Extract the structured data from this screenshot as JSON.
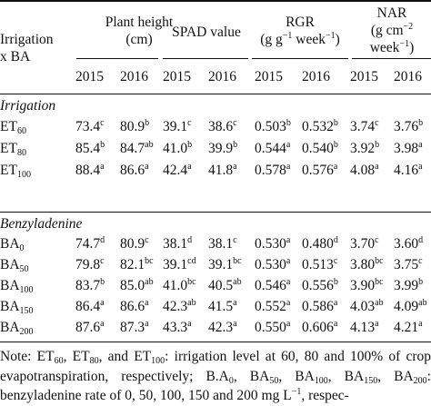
{
  "header": {
    "row_label_line1": "Irrigation",
    "row_label_line2": "x BA",
    "col_plant_height_l1": "Plant height",
    "col_plant_height_l2": "(cm)",
    "col_spad": "SPAD value",
    "col_rgr_l1": "RGR",
    "col_rgr_l2": "(g g",
    "col_rgr_l2_sup": "−1",
    "col_rgr_l2_tail": " week",
    "col_rgr_l2_sup2": "−1",
    "col_rgr_l2_end": ")",
    "col_nar_l1": "NAR",
    "col_nar_l2": "(g cm",
    "col_nar_l2_sup": "−2",
    "col_nar_l3": "week",
    "col_nar_l3_sup": "−1",
    "col_nar_l3_end": ")",
    "years": [
      "2015",
      "2016",
      "2015",
      "2016",
      "2015",
      "2016",
      "2015",
      "2016"
    ]
  },
  "sections": {
    "irrigation": "Irrigation",
    "benzyladenine": "Benzyladenine"
  },
  "rows": [
    {
      "base": "ET",
      "sub": "60",
      "cells": [
        [
          "73.4",
          "c"
        ],
        [
          "80.9",
          "b"
        ],
        [
          "39.1",
          "c"
        ],
        [
          "38.6",
          "c"
        ],
        [
          "0.503",
          "b"
        ],
        [
          "0.532",
          "b"
        ],
        [
          "3.74",
          "c"
        ],
        [
          "3.76",
          "b"
        ]
      ]
    },
    {
      "base": "ET",
      "sub": "80",
      "cells": [
        [
          "85.4",
          "b"
        ],
        [
          "84.7",
          "ab"
        ],
        [
          "41.0",
          "b"
        ],
        [
          "39.9",
          "b"
        ],
        [
          "0.544",
          "a"
        ],
        [
          "0.540",
          "b"
        ],
        [
          "3.92",
          "b"
        ],
        [
          "3.98",
          "a"
        ]
      ]
    },
    {
      "base": "ET",
      "sub": "100",
      "cells": [
        [
          "88.4",
          "a"
        ],
        [
          "86.6",
          "a"
        ],
        [
          "42.4",
          "a"
        ],
        [
          "41.8",
          "a"
        ],
        [
          "0.578",
          "a"
        ],
        [
          "0.576",
          "a"
        ],
        [
          "4.08",
          "a"
        ],
        [
          "4.16",
          "a"
        ]
      ]
    },
    {
      "base": "BA",
      "sub": "0",
      "cells": [
        [
          "74.7",
          "d"
        ],
        [
          "80.9",
          "c"
        ],
        [
          "38.1",
          "d"
        ],
        [
          "38.1",
          "c"
        ],
        [
          "0.530",
          "a"
        ],
        [
          "0.480",
          "d"
        ],
        [
          "3.70",
          "c"
        ],
        [
          "3.60",
          "d"
        ]
      ]
    },
    {
      "base": "BA",
      "sub": "50",
      "cells": [
        [
          "79.8",
          "c"
        ],
        [
          "82.1",
          "bc"
        ],
        [
          "39.1",
          "cd"
        ],
        [
          "39.1",
          "bc"
        ],
        [
          "0.530",
          "a"
        ],
        [
          "0.513",
          "c"
        ],
        [
          "3.80",
          "bc"
        ],
        [
          "3.75",
          "c"
        ]
      ]
    },
    {
      "base": "BA",
      "sub": "100",
      "cells": [
        [
          "83.7",
          "b"
        ],
        [
          "85.0",
          "ab"
        ],
        [
          "41.0",
          "bc"
        ],
        [
          "40.5",
          "ab"
        ],
        [
          "0.546",
          "a"
        ],
        [
          "0.556",
          "b"
        ],
        [
          "3.90",
          "bc"
        ],
        [
          "3.99",
          "b"
        ]
      ]
    },
    {
      "base": "BA",
      "sub": "150",
      "cells": [
        [
          "86.4",
          "a"
        ],
        [
          "86.6",
          "a"
        ],
        [
          "42.3",
          "ab"
        ],
        [
          "41.5",
          "a"
        ],
        [
          "0.552",
          "a"
        ],
        [
          "0.586",
          "a"
        ],
        [
          "4.03",
          "ab"
        ],
        [
          "4.09",
          "ab"
        ]
      ]
    },
    {
      "base": "BA",
      "sub": "200",
      "cells": [
        [
          "87.6",
          "a"
        ],
        [
          "87.3",
          "a"
        ],
        [
          "43.3",
          "a"
        ],
        [
          "42.3",
          "a"
        ],
        [
          "0.550",
          "a"
        ],
        [
          "0.606",
          "a"
        ],
        [
          "4.13",
          "a"
        ],
        [
          "4.21",
          "a"
        ]
      ]
    }
  ],
  "note": {
    "t1": "Note: ET",
    "s1": "60",
    "t2": ", ET",
    "s2": "80",
    "t3": ", and ET",
    "s3": "100",
    "t4": ": irrigation level at 60, 80 and 100% of crop evapotranspiration, respectively; B.A",
    "s4": "0",
    "t5": ", BA",
    "s5": "50",
    "t6": ", BA",
    "s6": "100",
    "t7": ", BA",
    "s7": "150",
    "t8": ", BA",
    "s8": "200",
    "t9": ": benzyladenine rate of 0, 50, 100, 150 and 200 mg L",
    "sup9": "−1",
    "t10": ", respec-"
  }
}
